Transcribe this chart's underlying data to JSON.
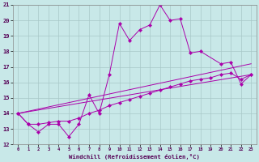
{
  "bg_color": "#c8e8e8",
  "grid_color": "#a8c8c8",
  "line_color": "#aa00aa",
  "xlabel": "Windchill (Refroidissement éolien,°C)",
  "xlim": [
    -0.5,
    23.5
  ],
  "ylim": [
    12,
    21
  ],
  "yticks": [
    12,
    13,
    14,
    15,
    16,
    17,
    18,
    19,
    20,
    21
  ],
  "xticks": [
    0,
    1,
    2,
    3,
    4,
    5,
    6,
    7,
    8,
    9,
    10,
    11,
    12,
    13,
    14,
    15,
    16,
    17,
    18,
    19,
    20,
    21,
    22,
    23
  ],
  "series1_x": [
    0,
    1,
    2,
    3,
    4,
    5,
    6,
    7,
    8,
    9,
    10,
    11,
    12,
    13,
    14,
    15,
    16,
    17,
    18,
    20,
    21,
    22,
    23
  ],
  "series1_y": [
    14.0,
    13.3,
    12.8,
    13.3,
    13.3,
    12.5,
    13.3,
    15.2,
    14.0,
    16.5,
    19.8,
    18.7,
    19.4,
    19.7,
    21.0,
    20.0,
    20.1,
    17.9,
    18.0,
    17.2,
    17.3,
    15.9,
    16.5
  ],
  "series2_x": [
    0,
    1,
    2,
    3,
    4,
    5,
    6,
    7,
    8,
    9,
    10,
    11,
    12,
    13,
    14,
    15,
    16,
    17,
    18,
    19,
    20,
    21,
    22,
    23
  ],
  "series2_y": [
    14.0,
    13.3,
    13.3,
    13.4,
    13.5,
    13.5,
    13.7,
    14.0,
    14.2,
    14.5,
    14.7,
    14.9,
    15.1,
    15.3,
    15.5,
    15.7,
    15.9,
    16.1,
    16.2,
    16.3,
    16.5,
    16.6,
    16.2,
    16.5
  ],
  "series3_x": [
    0,
    23
  ],
  "series3_y": [
    14.0,
    16.5
  ],
  "series4_x": [
    0,
    23
  ],
  "series4_y": [
    14.0,
    17.2
  ]
}
